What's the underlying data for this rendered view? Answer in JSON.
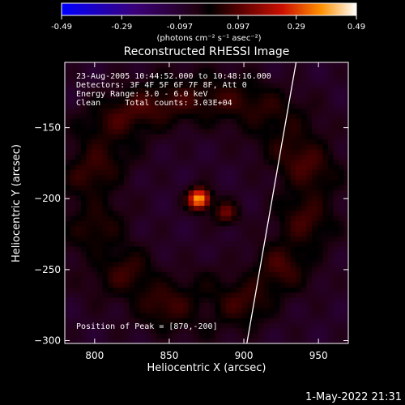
{
  "colorbar": {
    "tick_labels": [
      "-0.49",
      "-0.29",
      "-0.097",
      "0.097",
      "0.29",
      "0.49"
    ],
    "ticks": [
      -0.49,
      -0.29,
      -0.097,
      0.097,
      0.29,
      0.49
    ],
    "range": [
      -0.49,
      0.49
    ],
    "units": "(photons cm⁻² s⁻¹ asec⁻²)"
  },
  "chart_data": {
    "type": "heatmap",
    "title": "Reconstructed RHESSI Image",
    "xlabel": "Heliocentric X (arcsec)",
    "ylabel": "Heliocentric Y (arcsec)",
    "xlim": [
      780,
      970
    ],
    "ylim": [
      -302,
      -104
    ],
    "x_ticks": [
      800,
      850,
      900,
      950
    ],
    "y_ticks": [
      -150,
      -200,
      -250,
      -300
    ],
    "x_tick_labels": [
      "800",
      "850",
      "900",
      "950"
    ],
    "y_tick_labels": [
      "−150",
      "−200",
      "−250",
      "−300"
    ],
    "annotations": [
      "23-Aug-2005 10:44:52.000 to 10:48:16.000",
      "Detectors: 3F 4F 5F 6F 7F 8F, Att 0",
      "Energy Range: 3.0 - 6.0 keV",
      "Clean     Total counts: 3.03E+04",
      "Position of Peak = [870,-200]"
    ],
    "peak": {
      "x": 870,
      "y": -200,
      "value": 0.49
    },
    "secondary_source": {
      "x": 888,
      "y": -210
    },
    "ring": {
      "center": [
        870,
        -200
      ],
      "radius": 75,
      "width": 22,
      "value": 0.14
    },
    "limb_line": [
      [
        935,
        -104
      ],
      [
        902,
        -302
      ]
    ]
  },
  "footer": {
    "timestamp": "1-May-2022 21:31"
  }
}
